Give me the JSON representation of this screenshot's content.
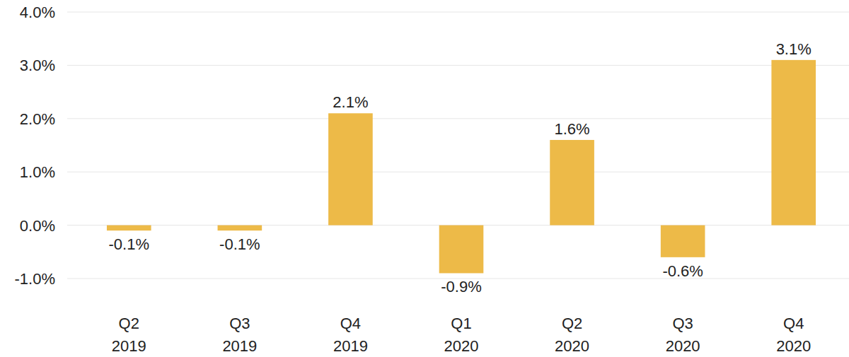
{
  "chart_data": {
    "type": "bar",
    "categories": [
      "Q2 2019",
      "Q3 2019",
      "Q4 2019",
      "Q1 2020",
      "Q2 2020",
      "Q3 2020",
      "Q4 2020"
    ],
    "values": [
      -0.1,
      -0.1,
      2.1,
      -0.9,
      1.6,
      -0.6,
      3.1
    ],
    "value_labels": [
      "-0.1%",
      "-0.1%",
      "2.1%",
      "-0.9%",
      "1.6%",
      "-0.6%",
      "3.1%"
    ],
    "data_labels": true,
    "color": "#EDBA48",
    "ylim": [
      -1,
      4
    ],
    "yticks": [
      {
        "value": -1,
        "label": "-1.0%"
      },
      {
        "value": 0,
        "label": "0.0%"
      },
      {
        "value": 1,
        "label": "1.0%"
      },
      {
        "value": 2,
        "label": "2.0%"
      },
      {
        "value": 3,
        "label": "3.0%"
      },
      {
        "value": 4,
        "label": "4.0%"
      }
    ],
    "grid": true
  }
}
